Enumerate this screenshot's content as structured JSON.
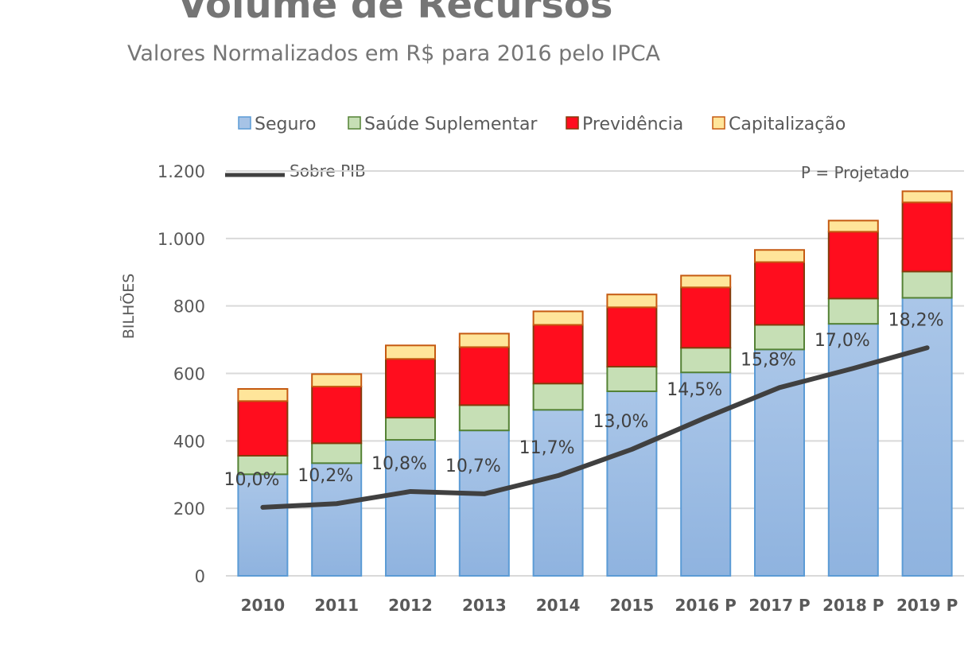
{
  "chart_data": {
    "type": "bar",
    "stacked": true,
    "title": "Volume de Recursos",
    "subtitle": "Valores Normalizados em R$ para 2016 pelo IPCA",
    "ylabel": "BILHÕES",
    "xlabel": "",
    "ylim": [
      0,
      1200
    ],
    "yticks": [
      0,
      200,
      400,
      600,
      800,
      1000,
      1200
    ],
    "ytick_labels": [
      "0",
      "200",
      "400",
      "600",
      "800",
      "1.000",
      "1.200"
    ],
    "grid": true,
    "legend_position": "top",
    "annotation": "P = Projetado",
    "categories": [
      "2010",
      "2011",
      "2012",
      "2013",
      "2014",
      "2015",
      "2016 P",
      "2017 P",
      "2018 P",
      "2019 P"
    ],
    "series": [
      {
        "name": "Seguro",
        "color": "#a6c3e6",
        "stroke": "#5b9bd5",
        "values": [
          301,
          334,
          403,
          431,
          492,
          547,
          603,
          671,
          747,
          824
        ]
      },
      {
        "name": "Saúde Suplementar",
        "color": "#c6dfb5",
        "stroke": "#548235",
        "values": [
          55,
          59,
          66,
          75,
          78,
          73,
          73,
          73,
          75,
          78
        ]
      },
      {
        "name": "Previdência",
        "color": "#ff0d1e",
        "stroke": "#843c0c",
        "values": [
          162,
          168,
          174,
          172,
          174,
          176,
          179,
          186,
          198,
          205
        ]
      },
      {
        "name": "Capitalização",
        "color": "#ffe59a",
        "stroke": "#c55a11",
        "values": [
          36,
          37,
          40,
          40,
          40,
          38,
          35,
          36,
          33,
          33
        ]
      }
    ],
    "line": {
      "name": "Sobre PIB",
      "color": "#404040",
      "values_percent": [
        10.0,
        10.2,
        10.8,
        10.7,
        11.7,
        13.0,
        14.5,
        15.8,
        17.0,
        18.2
      ],
      "labels": [
        "10,0%",
        "10,2%",
        "10,8%",
        "10,7%",
        "11,7%",
        "13,0%",
        "14,5%",
        "15,8%",
        "17,0%",
        "18,2%"
      ],
      "plotted_on_axis": [
        203,
        214,
        250,
        243,
        297,
        375,
        469,
        558,
        615,
        676
      ]
    }
  }
}
